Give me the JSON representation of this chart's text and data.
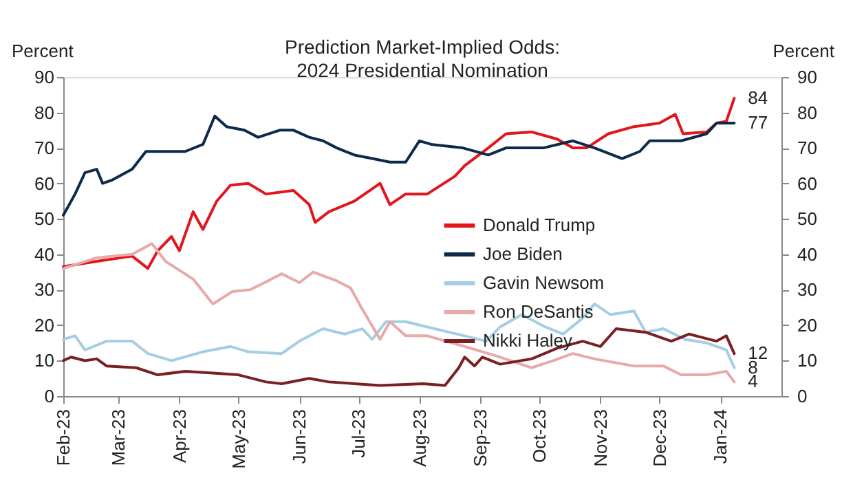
{
  "chart_data": {
    "type": "line",
    "title": "Prediction Market-Implied Odds: 2024 Presidential Nomination",
    "ylabel": "Percent",
    "y2label": "Percent",
    "xlim": [
      "2023-02-01",
      "2024-02-01"
    ],
    "xticks": [
      {
        "value": "2023-02-01",
        "label": "Feb-23"
      },
      {
        "value": "2023-03-01",
        "label": "Mar-23"
      },
      {
        "value": "2023-04-01",
        "label": "Apr-23"
      },
      {
        "value": "2023-05-01",
        "label": "May-23"
      },
      {
        "value": "2023-06-01",
        "label": "Jun-23"
      },
      {
        "value": "2023-07-01",
        "label": "Jul-23"
      },
      {
        "value": "2023-08-01",
        "label": "Aug-23"
      },
      {
        "value": "2023-09-01",
        "label": "Sep-23"
      },
      {
        "value": "2023-10-01",
        "label": "Oct-23"
      },
      {
        "value": "2023-11-01",
        "label": "Nov-23"
      },
      {
        "value": "2023-12-01",
        "label": "Dec-23"
      },
      {
        "value": "2024-01-01",
        "label": "Jan-24"
      }
    ],
    "ylim": [
      0,
      90
    ],
    "yticks": [
      0,
      10,
      20,
      30,
      40,
      50,
      60,
      70,
      80,
      90
    ],
    "y2lim": [
      0,
      90
    ],
    "y2ticks": [
      0,
      10,
      20,
      30,
      40,
      50,
      60,
      70,
      80,
      90
    ],
    "grid": false,
    "legend": "right",
    "marker": "none",
    "line_style": "solid",
    "series": [
      {
        "name": "Donald Trump",
        "color": "#e3141c",
        "x": [
          "2023-02-01",
          "2023-02-18",
          "2023-03-08",
          "2023-03-16",
          "2023-03-21",
          "2023-03-28",
          "2023-04-01",
          "2023-04-08",
          "2023-04-13",
          "2023-04-20",
          "2023-04-27",
          "2023-05-06",
          "2023-05-15",
          "2023-05-29",
          "2023-06-06",
          "2023-06-09",
          "2023-06-16",
          "2023-06-29",
          "2023-07-12",
          "2023-07-17",
          "2023-07-25",
          "2023-08-05",
          "2023-08-19",
          "2023-08-24",
          "2023-09-05",
          "2023-09-14",
          "2023-09-27",
          "2023-10-10",
          "2023-10-18",
          "2023-10-25",
          "2023-11-05",
          "2023-11-18",
          "2023-12-01",
          "2023-12-09",
          "2023-12-13",
          "2023-12-25",
          "2023-12-30",
          "2024-01-04",
          "2024-01-08"
        ],
        "values": [
          36.5,
          38,
          39.5,
          36,
          41,
          45,
          41,
          52,
          47,
          55,
          59.5,
          60,
          57,
          58,
          54,
          49,
          52,
          55,
          60,
          54,
          57,
          57,
          62,
          65,
          70,
          74,
          74.5,
          72.5,
          70,
          70,
          74,
          76,
          77,
          79.5,
          74,
          74.5,
          77,
          77.5,
          84
        ]
      },
      {
        "name": "Joe Biden",
        "color": "#0d2a4a",
        "x": [
          "2023-02-01",
          "2023-02-07",
          "2023-02-12",
          "2023-02-18",
          "2023-02-21",
          "2023-02-26",
          "2023-03-08",
          "2023-03-15",
          "2023-03-24",
          "2023-04-04",
          "2023-04-13",
          "2023-04-19",
          "2023-04-25",
          "2023-05-04",
          "2023-05-11",
          "2023-05-22",
          "2023-05-29",
          "2023-06-06",
          "2023-06-13",
          "2023-06-20",
          "2023-06-29",
          "2023-07-08",
          "2023-07-17",
          "2023-07-25",
          "2023-08-01",
          "2023-08-07",
          "2023-08-23",
          "2023-09-05",
          "2023-09-14",
          "2023-10-03",
          "2023-10-18",
          "2023-10-29",
          "2023-11-12",
          "2023-11-21",
          "2023-11-26",
          "2023-12-12",
          "2023-12-25",
          "2023-12-30",
          "2024-01-04",
          "2024-01-08"
        ],
        "values": [
          51,
          57,
          63,
          64,
          60,
          61,
          64,
          69,
          69,
          69,
          71,
          79,
          76,
          75,
          73,
          75,
          75,
          73,
          72,
          70,
          68,
          67,
          66,
          66,
          72,
          71,
          70,
          68,
          70,
          70,
          72,
          70,
          67,
          69,
          72,
          72,
          74,
          77,
          77,
          77
        ]
      },
      {
        "name": "Gavin Newsom",
        "color": "#a5cde3",
        "x": [
          "2023-02-01",
          "2023-02-07",
          "2023-02-12",
          "2023-02-23",
          "2023-03-08",
          "2023-03-16",
          "2023-03-28",
          "2023-04-13",
          "2023-04-27",
          "2023-05-06",
          "2023-05-23",
          "2023-06-01",
          "2023-06-13",
          "2023-06-24",
          "2023-07-03",
          "2023-07-08",
          "2023-07-15",
          "2023-07-25",
          "2023-08-05",
          "2023-08-24",
          "2023-09-04",
          "2023-09-11",
          "2023-09-22",
          "2023-10-04",
          "2023-10-13",
          "2023-10-23",
          "2023-10-29",
          "2023-11-06",
          "2023-11-18",
          "2023-11-24",
          "2023-12-03",
          "2023-12-14",
          "2023-12-25",
          "2024-01-04",
          "2024-01-08"
        ],
        "values": [
          16,
          17,
          13,
          15.5,
          15.5,
          12,
          10,
          12.5,
          14,
          12.5,
          12,
          15.5,
          19,
          17.5,
          19,
          16,
          21,
          21,
          19.5,
          17,
          15.5,
          19.5,
          23,
          19.5,
          17.5,
          22,
          26,
          23,
          24,
          18,
          19,
          16,
          15,
          13,
          8
        ]
      },
      {
        "name": "Ron DeSantis",
        "color": "#e8a9a9",
        "x": [
          "2023-02-01",
          "2023-02-18",
          "2023-03-08",
          "2023-03-18",
          "2023-03-25",
          "2023-04-08",
          "2023-04-18",
          "2023-04-28",
          "2023-05-07",
          "2023-05-16",
          "2023-05-23",
          "2023-06-01",
          "2023-06-08",
          "2023-06-20",
          "2023-06-27",
          "2023-07-03",
          "2023-07-12",
          "2023-07-17",
          "2023-07-25",
          "2023-08-05",
          "2023-08-24",
          "2023-09-11",
          "2023-09-27",
          "2023-10-08",
          "2023-10-18",
          "2023-10-29",
          "2023-11-18",
          "2023-12-03",
          "2023-12-12",
          "2023-12-25",
          "2024-01-04",
          "2024-01-08"
        ],
        "values": [
          36,
          39,
          40,
          43,
          38,
          33,
          26,
          29.5,
          30,
          32.5,
          34.5,
          32,
          35,
          32.5,
          30.5,
          24.5,
          16,
          21,
          17,
          17,
          14,
          11,
          8,
          10,
          12,
          10.5,
          8.5,
          8.5,
          6,
          6,
          7,
          4
        ]
      },
      {
        "name": "Nikki Haley",
        "color": "#7a1f22",
        "x": [
          "2023-02-01",
          "2023-02-05",
          "2023-02-12",
          "2023-02-18",
          "2023-02-23",
          "2023-03-10",
          "2023-03-21",
          "2023-04-04",
          "2023-04-18",
          "2023-05-01",
          "2023-05-15",
          "2023-05-23",
          "2023-06-06",
          "2023-06-16",
          "2023-06-29",
          "2023-07-12",
          "2023-08-03",
          "2023-08-14",
          "2023-08-21",
          "2023-08-24",
          "2023-08-29",
          "2023-09-02",
          "2023-09-11",
          "2023-09-27",
          "2023-10-10",
          "2023-10-23",
          "2023-11-01",
          "2023-11-09",
          "2023-11-24",
          "2023-12-07",
          "2023-12-16",
          "2023-12-30",
          "2024-01-04",
          "2024-01-08"
        ],
        "values": [
          10,
          11,
          10,
          10.5,
          8.5,
          8,
          6,
          7,
          6.5,
          6,
          4,
          3.5,
          5,
          4,
          3.5,
          3,
          3.5,
          3,
          8,
          11,
          8.5,
          11,
          9,
          10.5,
          13.5,
          15.5,
          14,
          19,
          18,
          15.5,
          17.5,
          15.5,
          17,
          12
        ]
      }
    ],
    "annotations": [
      {
        "text": "84",
        "x": "2024-01-08",
        "y": 84
      },
      {
        "text": "77",
        "x": "2024-01-08",
        "y": 77
      },
      {
        "text": "12",
        "x": "2024-01-08",
        "y": 12
      },
      {
        "text": "8",
        "x": "2024-01-08",
        "y": 8
      },
      {
        "text": "4",
        "x": "2024-01-08",
        "y": 4
      }
    ]
  }
}
